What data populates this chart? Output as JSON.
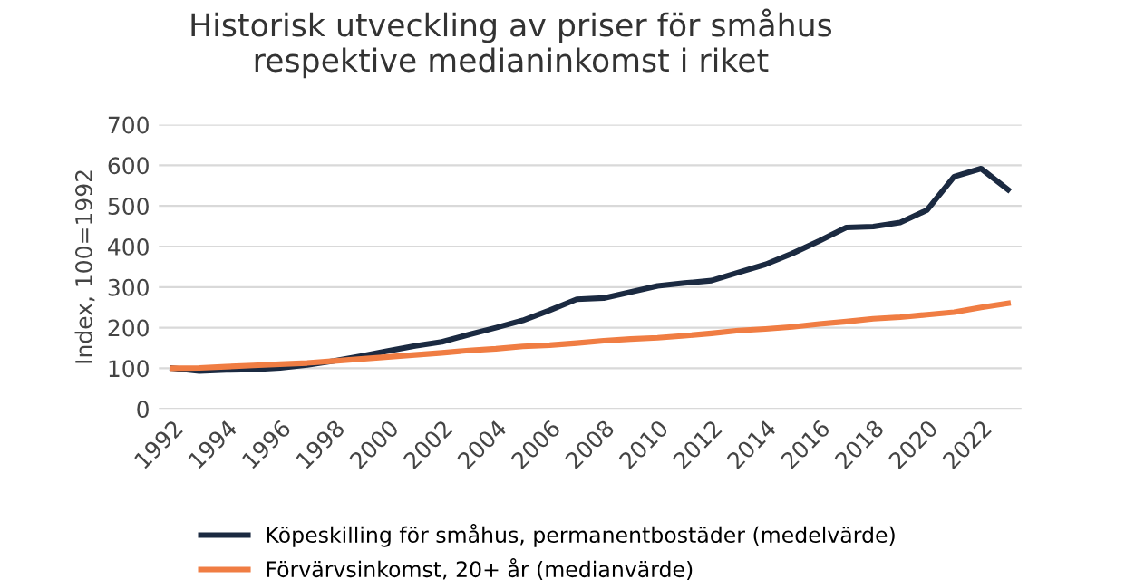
{
  "chart_data": {
    "type": "line",
    "title": "Historisk utveckling av priser för småhus\nrespektive medianinkomst i riket",
    "ylabel": "Index, 100=1992",
    "categories": [
      "1992",
      null,
      "1994",
      null,
      "1996",
      null,
      "1998",
      null,
      "2000",
      null,
      "2002",
      null,
      "2004",
      null,
      "2006",
      null,
      "2008",
      null,
      "2010",
      null,
      "2012",
      null,
      "2014",
      null,
      "2016",
      null,
      "2018",
      null,
      "2020",
      null,
      "2022",
      null
    ],
    "series": [
      {
        "name": "Köpeskilling för småhus, permanentbostäder (medelvärde)",
        "color": "#1b2a41",
        "values": [
          100,
          93,
          96,
          97,
          101,
          108,
          118,
          130,
          143,
          155,
          165,
          183,
          200,
          218,
          243,
          270,
          273,
          288,
          303,
          310,
          316,
          336,
          356,
          383,
          414,
          447,
          449,
          459,
          490,
          572,
          592,
          540
        ]
      },
      {
        "name": "Förvärvsinkomst, 20+ år (medianvärde)",
        "color": "#f07d43",
        "values": [
          100,
          101,
          104,
          107,
          110,
          113,
          118,
          123,
          128,
          133,
          138,
          144,
          148,
          154,
          157,
          162,
          168,
          172,
          175,
          180,
          186,
          193,
          197,
          202,
          209,
          215,
          222,
          226,
          232,
          238,
          250,
          260
        ]
      }
    ],
    "ylim": [
      0,
      700
    ],
    "yticks": [
      0,
      100,
      200,
      300,
      400,
      500,
      600,
      700
    ],
    "grid": "y",
    "legend": "bottom",
    "line_style": "solid",
    "marker": "none"
  }
}
